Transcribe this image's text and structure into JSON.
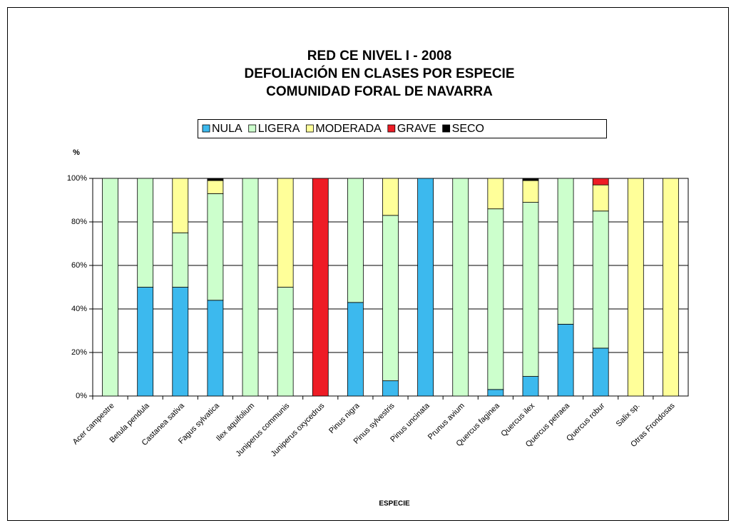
{
  "chart_data": {
    "type": "stacked_bar",
    "title": [
      "RED CE NIVEL I - 2008",
      "DEFOLIACIÓN EN CLASES POR ESPECIE",
      "COMUNIDAD FORAL DE NAVARRA"
    ],
    "y_label": "%",
    "x_label": "ESPECIE",
    "categories": [
      "Acer campestre",
      "Betula pendula",
      "Castanea sativa",
      "Fagus sylvatica",
      "Ilex aquifolium",
      "Juniperus communis",
      "Juniperus oxycedrus",
      "Pinus nigra",
      "Pinus sylvestris",
      "Pinus uncinata",
      "Prunus avium",
      "Quercus faginea",
      "Quercus ilex",
      "Quercus petraea",
      "Quercus robur",
      "Salix sp.",
      "Otras Frondosas"
    ],
    "series": [
      {
        "name": "NULA",
        "color": "#3cb9ee",
        "values": [
          0,
          50,
          50,
          44,
          0,
          0,
          0,
          43,
          7,
          100,
          0,
          3,
          9,
          33,
          22,
          0,
          0
        ]
      },
      {
        "name": "LIGERA",
        "color": "#ccffcc",
        "values": [
          100,
          50,
          25,
          49,
          100,
          50,
          0,
          57,
          76,
          0,
          100,
          83,
          80,
          67,
          63,
          0,
          0
        ]
      },
      {
        "name": "MODERADA",
        "color": "#ffff99",
        "values": [
          0,
          0,
          25,
          6,
          0,
          50,
          0,
          0,
          17,
          0,
          0,
          14,
          10,
          0,
          12,
          100,
          100
        ]
      },
      {
        "name": "GRAVE",
        "color": "#ee1c25",
        "values": [
          0,
          0,
          0,
          0,
          0,
          0,
          100,
          0,
          0,
          0,
          0,
          0,
          0,
          0,
          3,
          0,
          0
        ]
      },
      {
        "name": "SECO",
        "color": "#000000",
        "values": [
          0,
          0,
          0,
          1,
          0,
          0,
          0,
          0,
          0,
          0,
          0,
          0,
          1,
          0,
          0,
          0,
          0
        ]
      }
    ],
    "ylim": [
      0,
      100
    ],
    "yticks": [
      {
        "value": 0,
        "label": "0%"
      },
      {
        "value": 20,
        "label": "20%"
      },
      {
        "value": 40,
        "label": "40%"
      },
      {
        "value": 60,
        "label": "60%"
      },
      {
        "value": 80,
        "label": "80%"
      },
      {
        "value": 100,
        "label": "100%"
      }
    ],
    "grid": true,
    "legend": "top"
  }
}
